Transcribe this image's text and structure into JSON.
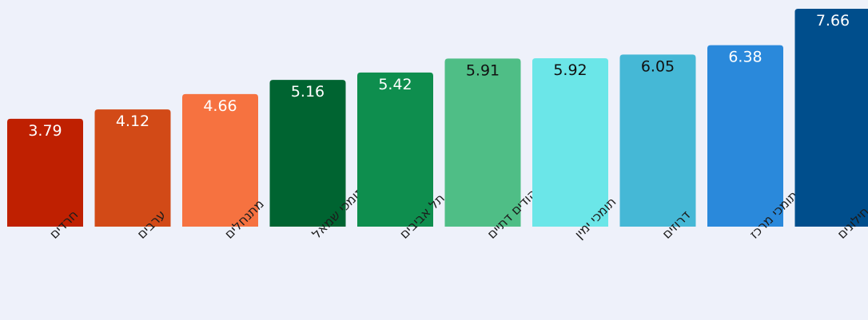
{
  "chart_data": {
    "type": "bar",
    "title": "",
    "xlabel": "",
    "ylabel": "",
    "ylim": [
      0,
      7.66
    ],
    "grid": false,
    "legend": "none",
    "categories": [
      "חרדים",
      "ערבים",
      "מתנחלים",
      "תומכי שמאל",
      "תל אביבים",
      "יהודים דתיים",
      "תומכי ימין",
      "דרוזים",
      "תומכי מרכז",
      "יהודים חילונים"
    ],
    "values": [
      3.79,
      4.12,
      4.66,
      5.16,
      5.42,
      5.91,
      5.92,
      6.05,
      6.38,
      7.66
    ],
    "value_labels": [
      "3.79",
      "4.12",
      "4.66",
      "5.16",
      "5.42",
      "5.91",
      "5.92",
      "6.05",
      "6.38",
      "7.66"
    ],
    "colors": [
      "#BF2001",
      "#D24A17",
      "#F67240",
      "#006431",
      "#0E8E4E",
      "#4FBE86",
      "#6BE6E8",
      "#45B8D6",
      "#2A89DB",
      "#004E8C"
    ],
    "label_colors": [
      "#ffffff",
      "#ffffff",
      "#ffffff",
      "#ffffff",
      "#ffffff",
      "#111111",
      "#111111",
      "#111111",
      "#ffffff",
      "#ffffff"
    ]
  }
}
